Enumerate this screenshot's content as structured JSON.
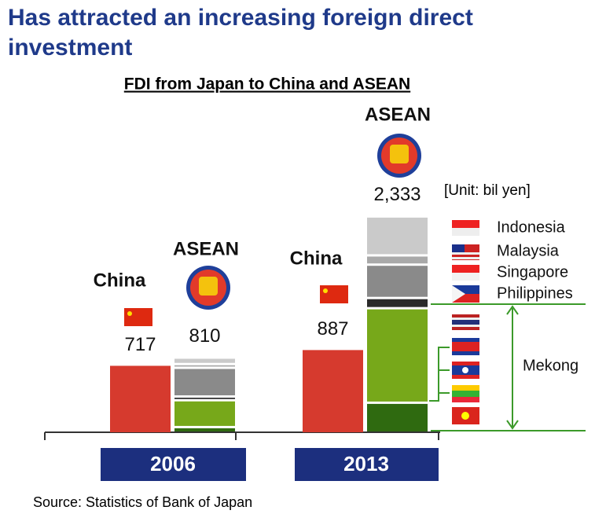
{
  "title": "Has attracted an increasing foreign direct investment",
  "chart_data": {
    "type": "bar",
    "subtitle": "FDI from Japan to China and ASEAN",
    "unit_label": "[Unit: bil yen]",
    "source": "Source: Statistics of Bank of Japan",
    "categories": [
      "2006",
      "2013"
    ],
    "ylim": [
      0,
      2400
    ],
    "china": {
      "name": "China",
      "color": "#d63a2e",
      "values": [
        717,
        887
      ]
    },
    "asean": {
      "name": "ASEAN",
      "totals": [
        810,
        2333
      ],
      "total_labels": [
        "810",
        "2,333"
      ]
    },
    "group_label": "Mekong",
    "series": [
      {
        "name": "Indonesia",
        "color": "#cacaca",
        "values": [
          70,
          420
        ]
      },
      {
        "name": "Malaysia",
        "color": "#a9a9a9",
        "values": [
          40,
          100
        ]
      },
      {
        "name": "Singapore",
        "color": "#8a8a8a",
        "values": [
          310,
          360
        ]
      },
      {
        "name": "Philippines",
        "color": "#2a2a2a",
        "values": [
          40,
          110
        ]
      },
      {
        "color": "#77a81a",
        "values": [
          290,
          1020
        ]
      },
      {
        "color": "#2f6a10",
        "values": [
          60,
          323
        ]
      }
    ]
  }
}
